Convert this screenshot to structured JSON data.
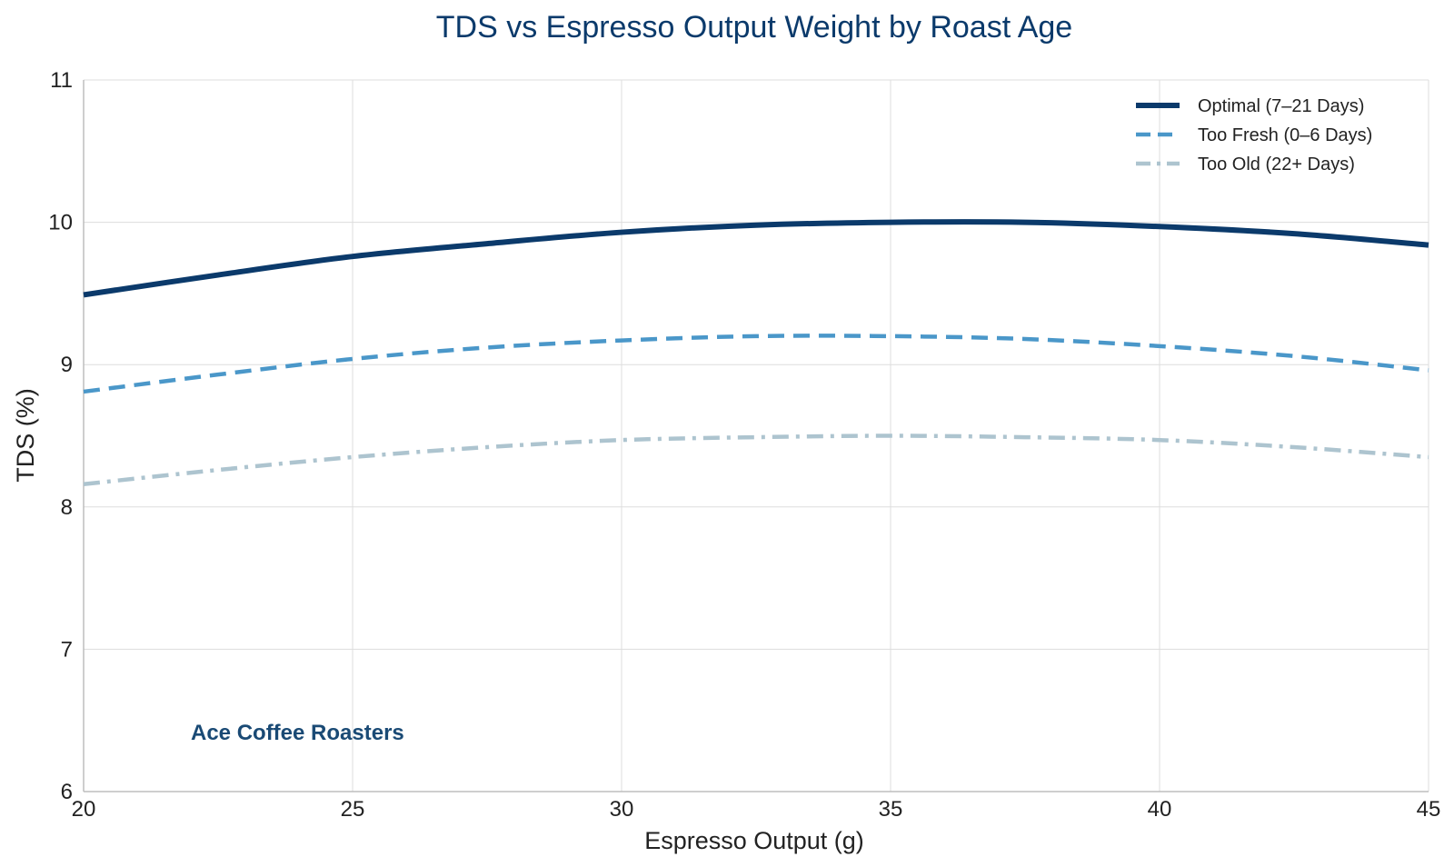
{
  "chart_data": {
    "type": "line",
    "title": "TDS vs Espresso Output Weight by Roast Age",
    "xlabel": "Espresso Output (g)",
    "ylabel": "TDS (%)",
    "xlim": [
      20,
      45
    ],
    "ylim": [
      6,
      11
    ],
    "x_ticks": [
      "20",
      "25",
      "30",
      "35",
      "40",
      "45"
    ],
    "y_ticks": [
      "6",
      "7",
      "8",
      "9",
      "10",
      "11"
    ],
    "grid": true,
    "legend_position": "top-right",
    "annotation": "Ace Coffee Roasters",
    "x": [
      20,
      22.5,
      25,
      27.5,
      30,
      32.5,
      35,
      37.5,
      40,
      42.5,
      45
    ],
    "series": [
      {
        "name": "Optimal (7–21 Days)",
        "color": "#0b3a6b",
        "style": "solid",
        "values": [
          9.49,
          9.63,
          9.76,
          9.85,
          9.93,
          9.98,
          10.0,
          10.0,
          9.97,
          9.92,
          9.84
        ]
      },
      {
        "name": "Too Fresh (0–6 Days)",
        "color": "#4a97c9",
        "style": "dashed",
        "values": [
          8.81,
          8.93,
          9.04,
          9.12,
          9.17,
          9.2,
          9.2,
          9.18,
          9.13,
          9.06,
          8.96
        ]
      },
      {
        "name": "Too Old (22+ Days)",
        "color": "#adc4cf",
        "style": "dashdot",
        "values": [
          8.16,
          8.26,
          8.35,
          8.42,
          8.47,
          8.49,
          8.5,
          8.49,
          8.47,
          8.42,
          8.35
        ]
      }
    ],
    "title_color": "#0b3a6b",
    "annotation_color": "#1a4a75"
  }
}
